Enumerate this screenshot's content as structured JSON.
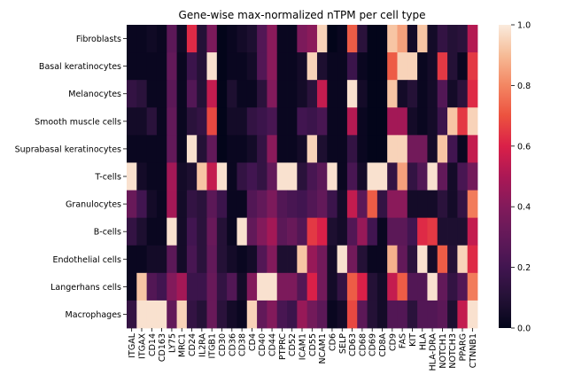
{
  "chart_data": {
    "type": "heatmap",
    "title": "Gene-wise max-normalized nTPM per cell type",
    "xlabel": "",
    "ylabel": "",
    "rows": [
      "Fibroblasts",
      "Basal keratinocytes",
      "Melanocytes",
      "Smooth muscle cells",
      "Suprabasal keratinocytes",
      "T-cells",
      "Granulocytes",
      "B-cells",
      "Endothelial cells",
      "Langerhans cells",
      "Macrophages"
    ],
    "columns": [
      "ITGAL",
      "ITGAX",
      "CD14",
      "CD163",
      "LY75",
      "MRC1",
      "CD24",
      "IL2RA",
      "ITGB1",
      "CD30",
      "CD36",
      "CD38",
      "CD4",
      "CD40",
      "CD44",
      "PTPRC",
      "CD52",
      "ICAM1",
      "CD55",
      "NCAM1",
      "CD6",
      "SELP",
      "CD63",
      "CD68",
      "CD69",
      "CD8A",
      "CD9",
      "FAS",
      "KIT",
      "HLA",
      "HLA-DRA",
      "NOTCH1",
      "NOTCH3",
      "PPARG",
      "CTNNB1"
    ],
    "values": [
      [
        0.02,
        0.02,
        0.04,
        0.02,
        0.28,
        0.04,
        0.62,
        0.1,
        0.38,
        0.0,
        0.02,
        0.05,
        0.08,
        0.25,
        0.42,
        0.02,
        0.02,
        0.38,
        0.42,
        0.95,
        0.0,
        0.02,
        0.72,
        0.12,
        0.0,
        0.0,
        0.92,
        0.85,
        0.05,
        0.92,
        0.05,
        0.15,
        0.1,
        0.12,
        0.52
      ],
      [
        0.02,
        0.02,
        0.02,
        0.02,
        0.3,
        0.02,
        0.18,
        0.1,
        0.98,
        0.0,
        0.02,
        0.02,
        0.05,
        0.25,
        0.42,
        0.02,
        0.02,
        0.05,
        0.95,
        0.08,
        0.02,
        0.02,
        0.18,
        0.02,
        0.0,
        0.0,
        0.72,
        0.95,
        0.95,
        0.02,
        0.05,
        0.65,
        0.1,
        0.02,
        0.65
      ],
      [
        0.15,
        0.12,
        0.02,
        0.02,
        0.28,
        0.02,
        0.25,
        0.1,
        0.55,
        0.0,
        0.08,
        0.02,
        0.02,
        0.12,
        0.4,
        0.02,
        0.02,
        0.05,
        0.12,
        0.55,
        0.02,
        0.02,
        0.98,
        0.05,
        0.0,
        0.0,
        0.92,
        0.05,
        0.1,
        0.02,
        0.05,
        0.25,
        0.05,
        0.12,
        0.62
      ],
      [
        0.05,
        0.05,
        0.12,
        0.02,
        0.3,
        0.02,
        0.12,
        0.15,
        0.68,
        0.0,
        0.05,
        0.05,
        0.15,
        0.18,
        0.22,
        0.02,
        0.02,
        0.2,
        0.18,
        0.22,
        0.02,
        0.02,
        0.52,
        0.02,
        0.0,
        0.0,
        0.48,
        0.48,
        0.05,
        0.02,
        0.05,
        0.18,
        0.92,
        0.65,
        0.95
      ],
      [
        0.02,
        0.02,
        0.02,
        0.02,
        0.3,
        0.02,
        0.98,
        0.1,
        0.3,
        0.0,
        0.02,
        0.02,
        0.05,
        0.15,
        0.42,
        0.02,
        0.02,
        0.05,
        0.95,
        0.08,
        0.02,
        0.02,
        0.15,
        0.02,
        0.0,
        0.0,
        0.95,
        0.95,
        0.35,
        0.35,
        0.05,
        0.92,
        0.2,
        0.02,
        0.55
      ],
      [
        0.98,
        0.05,
        0.02,
        0.02,
        0.48,
        0.05,
        0.08,
        0.92,
        0.55,
        0.98,
        0.02,
        0.15,
        0.2,
        0.15,
        0.3,
        0.98,
        0.98,
        0.12,
        0.22,
        0.28,
        0.98,
        0.02,
        0.22,
        0.05,
        0.98,
        0.98,
        0.15,
        0.85,
        0.15,
        0.25,
        0.98,
        0.3,
        0.05,
        0.22,
        0.35
      ],
      [
        0.32,
        0.2,
        0.05,
        0.02,
        0.48,
        0.05,
        0.15,
        0.12,
        0.28,
        0.18,
        0.02,
        0.02,
        0.25,
        0.3,
        0.38,
        0.25,
        0.22,
        0.2,
        0.25,
        0.3,
        0.18,
        0.05,
        0.55,
        0.28,
        0.72,
        0.15,
        0.42,
        0.42,
        0.05,
        0.05,
        0.05,
        0.12,
        0.05,
        0.15,
        0.78
      ],
      [
        0.15,
        0.08,
        0.02,
        0.02,
        0.98,
        0.05,
        0.2,
        0.12,
        0.32,
        0.1,
        0.02,
        0.98,
        0.3,
        0.4,
        0.48,
        0.28,
        0.32,
        0.25,
        0.65,
        0.6,
        0.08,
        0.05,
        0.25,
        0.45,
        0.2,
        0.02,
        0.28,
        0.28,
        0.2,
        0.62,
        0.65,
        0.08,
        0.08,
        0.08,
        0.55
      ],
      [
        0.02,
        0.02,
        0.05,
        0.05,
        0.28,
        0.05,
        0.22,
        0.12,
        0.3,
        0.1,
        0.05,
        0.02,
        0.05,
        0.25,
        0.4,
        0.08,
        0.08,
        0.92,
        0.45,
        0.35,
        0.05,
        0.98,
        0.35,
        0.1,
        0.02,
        0.02,
        0.88,
        0.3,
        0.12,
        0.98,
        0.05,
        0.72,
        0.1,
        0.95,
        0.62
      ],
      [
        0.02,
        0.92,
        0.25,
        0.2,
        0.4,
        0.48,
        0.18,
        0.18,
        0.32,
        0.15,
        0.25,
        0.05,
        0.4,
        0.98,
        0.98,
        0.38,
        0.38,
        0.25,
        0.6,
        0.35,
        0.05,
        0.15,
        0.72,
        0.6,
        0.1,
        0.05,
        0.55,
        0.72,
        0.25,
        0.25,
        0.98,
        0.3,
        0.15,
        0.25,
        0.78
      ],
      [
        0.15,
        0.98,
        0.98,
        0.98,
        0.3,
        0.95,
        0.15,
        0.1,
        0.32,
        0.12,
        0.05,
        0.02,
        0.95,
        0.3,
        0.4,
        0.22,
        0.18,
        0.45,
        0.35,
        0.28,
        0.02,
        0.05,
        0.68,
        0.28,
        0.1,
        0.05,
        0.25,
        0.25,
        0.12,
        0.25,
        0.25,
        0.28,
        0.08,
        0.55,
        0.98
      ]
    ],
    "colorbar": {
      "range": [
        0.0,
        1.0
      ],
      "ticks": [
        "0.0",
        "0.2",
        "0.4",
        "0.6",
        "0.8",
        "1.0"
      ],
      "colormap": "rocket"
    }
  }
}
